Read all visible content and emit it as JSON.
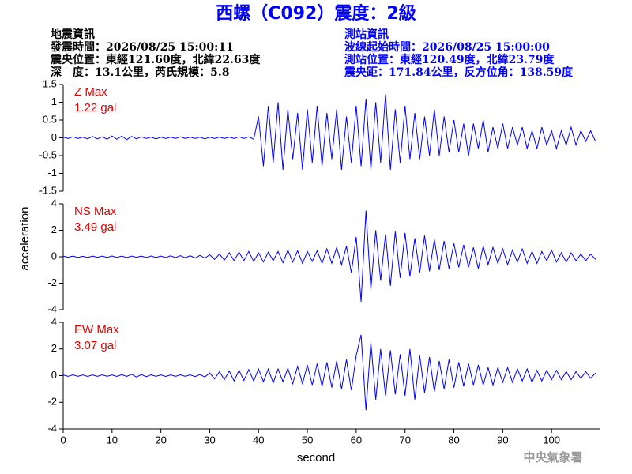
{
  "header": {
    "title": "西螺（C092）震度：2級",
    "event_info": [
      "地震資訊",
      "發震時間：2026/08/25 15:00:11",
      "震央位置：東經121.60度，北緯22.63度",
      "深　度：13.1公里，芮氏規模：5.8"
    ],
    "station_info": [
      "測站資訊",
      "波線起始時間：2026/08/25 15:00:00",
      "測站位置：東經120.49度，北緯23.79度",
      "震央距：171.84公里，反方位角：138.59度"
    ],
    "x_label": "second",
    "y_label": "acceleration",
    "footer": "中央氣象署"
  },
  "chart_data": [
    {
      "type": "line",
      "color": "#0000ff",
      "annotations": [
        "Z Max",
        "1.22 gal"
      ],
      "xlim": [
        0,
        110
      ],
      "ylim": [
        -1.5,
        1.5
      ],
      "yticks": [
        -1.5,
        -1,
        -0.5,
        0,
        0.5,
        1,
        1.5
      ],
      "x": [
        0,
        1,
        2,
        3,
        4,
        5,
        6,
        7,
        8,
        9,
        10,
        11,
        12,
        13,
        14,
        15,
        16,
        17,
        18,
        19,
        20,
        21,
        22,
        23,
        24,
        25,
        26,
        27,
        28,
        29,
        30,
        31,
        32,
        33,
        34,
        35,
        36,
        37,
        38,
        39,
        40,
        41,
        42,
        43,
        44,
        45,
        46,
        47,
        48,
        49,
        50,
        51,
        52,
        53,
        54,
        55,
        56,
        57,
        58,
        59,
        60,
        61,
        62,
        63,
        64,
        65,
        66,
        67,
        68,
        69,
        70,
        71,
        72,
        73,
        74,
        75,
        76,
        77,
        78,
        79,
        80,
        81,
        82,
        83,
        84,
        85,
        86,
        87,
        88,
        89,
        90,
        91,
        92,
        93,
        94,
        95,
        96,
        97,
        98,
        99,
        100,
        101,
        102,
        103,
        104,
        105,
        106,
        107,
        108,
        109
      ],
      "values": [
        0.02,
        -0.02,
        0.03,
        -0.02,
        0.02,
        -0.03,
        0.04,
        -0.03,
        0.03,
        -0.04,
        0.05,
        -0.04,
        0.05,
        -0.05,
        0.04,
        -0.03,
        0.03,
        -0.02,
        0.02,
        -0.03,
        0.02,
        -0.02,
        0.02,
        -0.02,
        0.03,
        -0.02,
        0.02,
        -0.02,
        0.02,
        -0.03,
        0.02,
        -0.02,
        0.02,
        -0.02,
        0.02,
        -0.02,
        0.03,
        -0.02,
        0.03,
        -0.04,
        0.6,
        -0.8,
        0.9,
        -0.7,
        1.0,
        -0.9,
        0.8,
        -0.6,
        0.7,
        -0.9,
        0.8,
        -0.7,
        0.9,
        -0.8,
        0.7,
        -0.6,
        0.8,
        -0.9,
        0.6,
        -0.7,
        0.9,
        -0.8,
        1.1,
        -0.9,
        1.0,
        -0.7,
        1.22,
        -0.9,
        0.8,
        -0.7,
        0.9,
        -0.6,
        0.7,
        -0.6,
        0.6,
        -0.5,
        0.8,
        -0.5,
        0.6,
        -0.4,
        0.5,
        -0.4,
        0.4,
        -0.5,
        0.4,
        -0.3,
        0.5,
        -0.4,
        0.3,
        -0.3,
        0.4,
        -0.3,
        0.3,
        -0.2,
        0.3,
        -0.3,
        0.2,
        -0.3,
        0.3,
        -0.2,
        0.2,
        -0.3,
        0.2,
        -0.2,
        0.3,
        -0.2,
        0.2,
        -0.1,
        0.2,
        -0.1
      ]
    },
    {
      "type": "line",
      "color": "#0000ff",
      "annotations": [
        "NS Max",
        "3.49 gal"
      ],
      "xlim": [
        0,
        110
      ],
      "ylim": [
        -4,
        4
      ],
      "yticks": [
        -4,
        -2,
        0,
        2,
        4
      ],
      "x": [
        0,
        1,
        2,
        3,
        4,
        5,
        6,
        7,
        8,
        9,
        10,
        11,
        12,
        13,
        14,
        15,
        16,
        17,
        18,
        19,
        20,
        21,
        22,
        23,
        24,
        25,
        26,
        27,
        28,
        29,
        30,
        31,
        32,
        33,
        34,
        35,
        36,
        37,
        38,
        39,
        40,
        41,
        42,
        43,
        44,
        45,
        46,
        47,
        48,
        49,
        50,
        51,
        52,
        53,
        54,
        55,
        56,
        57,
        58,
        59,
        60,
        61,
        62,
        63,
        64,
        65,
        66,
        67,
        68,
        69,
        70,
        71,
        72,
        73,
        74,
        75,
        76,
        77,
        78,
        79,
        80,
        81,
        82,
        83,
        84,
        85,
        86,
        87,
        88,
        89,
        90,
        91,
        92,
        93,
        94,
        95,
        96,
        97,
        98,
        99,
        100,
        101,
        102,
        103,
        104,
        105,
        106,
        107,
        108,
        109
      ],
      "values": [
        0.05,
        -0.04,
        0.05,
        -0.05,
        0.04,
        -0.05,
        0.05,
        -0.04,
        0.05,
        -0.05,
        0.06,
        -0.05,
        0.05,
        -0.06,
        0.05,
        -0.04,
        0.05,
        -0.05,
        0.06,
        -0.05,
        0.05,
        -0.06,
        0.07,
        -0.06,
        0.08,
        -0.07,
        0.08,
        -0.09,
        0.1,
        -0.1,
        0.15,
        -0.2,
        0.2,
        -0.25,
        0.3,
        -0.3,
        0.35,
        -0.3,
        0.4,
        -0.35,
        0.3,
        -0.4,
        0.35,
        -0.3,
        0.4,
        -0.45,
        0.5,
        -0.4,
        0.45,
        -0.5,
        0.4,
        -0.35,
        0.45,
        -0.5,
        0.6,
        -0.5,
        0.7,
        -0.6,
        0.8,
        -1.2,
        1.5,
        -3.4,
        3.49,
        -2.5,
        2.0,
        -1.8,
        1.7,
        -2.2,
        1.9,
        -1.6,
        1.8,
        -1.5,
        1.4,
        -1.2,
        1.6,
        -1.1,
        1.3,
        -1.0,
        1.2,
        -0.9,
        1.0,
        -0.8,
        0.9,
        -0.8,
        0.7,
        -0.9,
        0.8,
        -0.6,
        0.7,
        -0.5,
        0.6,
        -0.6,
        0.5,
        -0.4,
        0.6,
        -0.5,
        0.4,
        -0.5,
        0.4,
        -0.3,
        0.5,
        -0.4,
        0.3,
        -0.4,
        0.3,
        -0.3,
        0.2,
        -0.3,
        0.2,
        -0.2
      ]
    },
    {
      "type": "line",
      "color": "#0000ff",
      "annotations": [
        "EW Max",
        "3.07 gal"
      ],
      "xlim": [
        0,
        110
      ],
      "ylim": [
        -4,
        4
      ],
      "yticks": [
        -4,
        -2,
        0,
        2,
        4
      ],
      "xticks": [
        0,
        10,
        20,
        30,
        40,
        50,
        60,
        70,
        80,
        90,
        100
      ],
      "x": [
        0,
        1,
        2,
        3,
        4,
        5,
        6,
        7,
        8,
        9,
        10,
        11,
        12,
        13,
        14,
        15,
        16,
        17,
        18,
        19,
        20,
        21,
        22,
        23,
        24,
        25,
        26,
        27,
        28,
        29,
        30,
        31,
        32,
        33,
        34,
        35,
        36,
        37,
        38,
        39,
        40,
        41,
        42,
        43,
        44,
        45,
        46,
        47,
        48,
        49,
        50,
        51,
        52,
        53,
        54,
        55,
        56,
        57,
        58,
        59,
        60,
        61,
        62,
        63,
        64,
        65,
        66,
        67,
        68,
        69,
        70,
        71,
        72,
        73,
        74,
        75,
        76,
        77,
        78,
        79,
        80,
        81,
        82,
        83,
        84,
        85,
        86,
        87,
        88,
        89,
        90,
        91,
        92,
        93,
        94,
        95,
        96,
        97,
        98,
        99,
        100,
        101,
        102,
        103,
        104,
        105,
        106,
        107,
        108,
        109
      ],
      "values": [
        0.05,
        -0.05,
        0.06,
        -0.05,
        0.05,
        -0.06,
        0.05,
        -0.05,
        0.06,
        -0.05,
        0.05,
        -0.06,
        0.07,
        -0.06,
        0.1,
        -0.1,
        0.08,
        -0.07,
        0.06,
        -0.05,
        0.05,
        -0.06,
        0.05,
        -0.05,
        0.06,
        -0.05,
        0.06,
        -0.07,
        0.08,
        -0.1,
        0.2,
        -0.25,
        0.3,
        -0.3,
        0.35,
        -0.4,
        0.4,
        -0.35,
        0.45,
        -0.4,
        0.5,
        -0.45,
        0.5,
        -0.55,
        0.5,
        -0.45,
        0.55,
        -0.6,
        0.7,
        -0.6,
        0.8,
        -0.7,
        0.9,
        -0.8,
        1.0,
        -0.9,
        1.1,
        -1.0,
        1.2,
        -1.1,
        1.5,
        3.07,
        -2.6,
        2.5,
        -1.8,
        2.0,
        -1.5,
        1.9,
        -1.4,
        1.6,
        -1.5,
        2.0,
        -1.8,
        1.5,
        -1.3,
        1.4,
        -1.2,
        1.1,
        -1.0,
        1.2,
        -0.9,
        1.0,
        -0.8,
        0.9,
        -0.7,
        0.8,
        -0.7,
        0.6,
        -0.7,
        0.6,
        -0.5,
        0.6,
        -0.5,
        0.5,
        -0.4,
        0.5,
        -0.5,
        0.4,
        -0.4,
        0.4,
        -0.3,
        0.4,
        -0.3,
        0.3,
        -0.3,
        0.3,
        -0.2,
        0.3,
        -0.2,
        0.2
      ]
    }
  ]
}
